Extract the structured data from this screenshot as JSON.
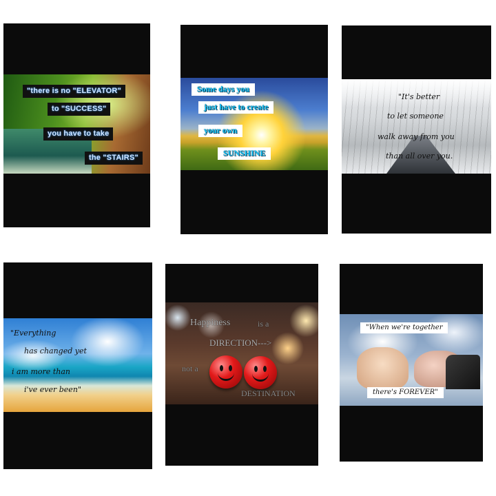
{
  "cards": [
    {
      "lines": [
        "\"there is no \"ELEVATOR\"",
        "to \"SUCCESS\"",
        "you have to take",
        "the \"STAIRS\""
      ]
    },
    {
      "lines": [
        "Some days you",
        "just have to create",
        "your own",
        "SUNSHINE"
      ]
    },
    {
      "lines": [
        "\"It's better",
        "to let someone",
        "walk away from you",
        "than all over you."
      ]
    },
    {
      "lines": [
        "\"Everything",
        "has changed yet",
        "i am more than",
        "i've ever been\""
      ]
    },
    {
      "lines": [
        "Happiness",
        "is a",
        "DIRECTION--->",
        "not a",
        "DESTINATION"
      ]
    },
    {
      "lines": [
        "\"When we're together",
        "there's FOREVER\""
      ]
    }
  ],
  "colors": {
    "card_frame": "#0b0b0b",
    "page_background": "#ffffff",
    "accent_blue_text": "#14c8ff"
  },
  "icons": [
    "smiley-ball-icon"
  ]
}
